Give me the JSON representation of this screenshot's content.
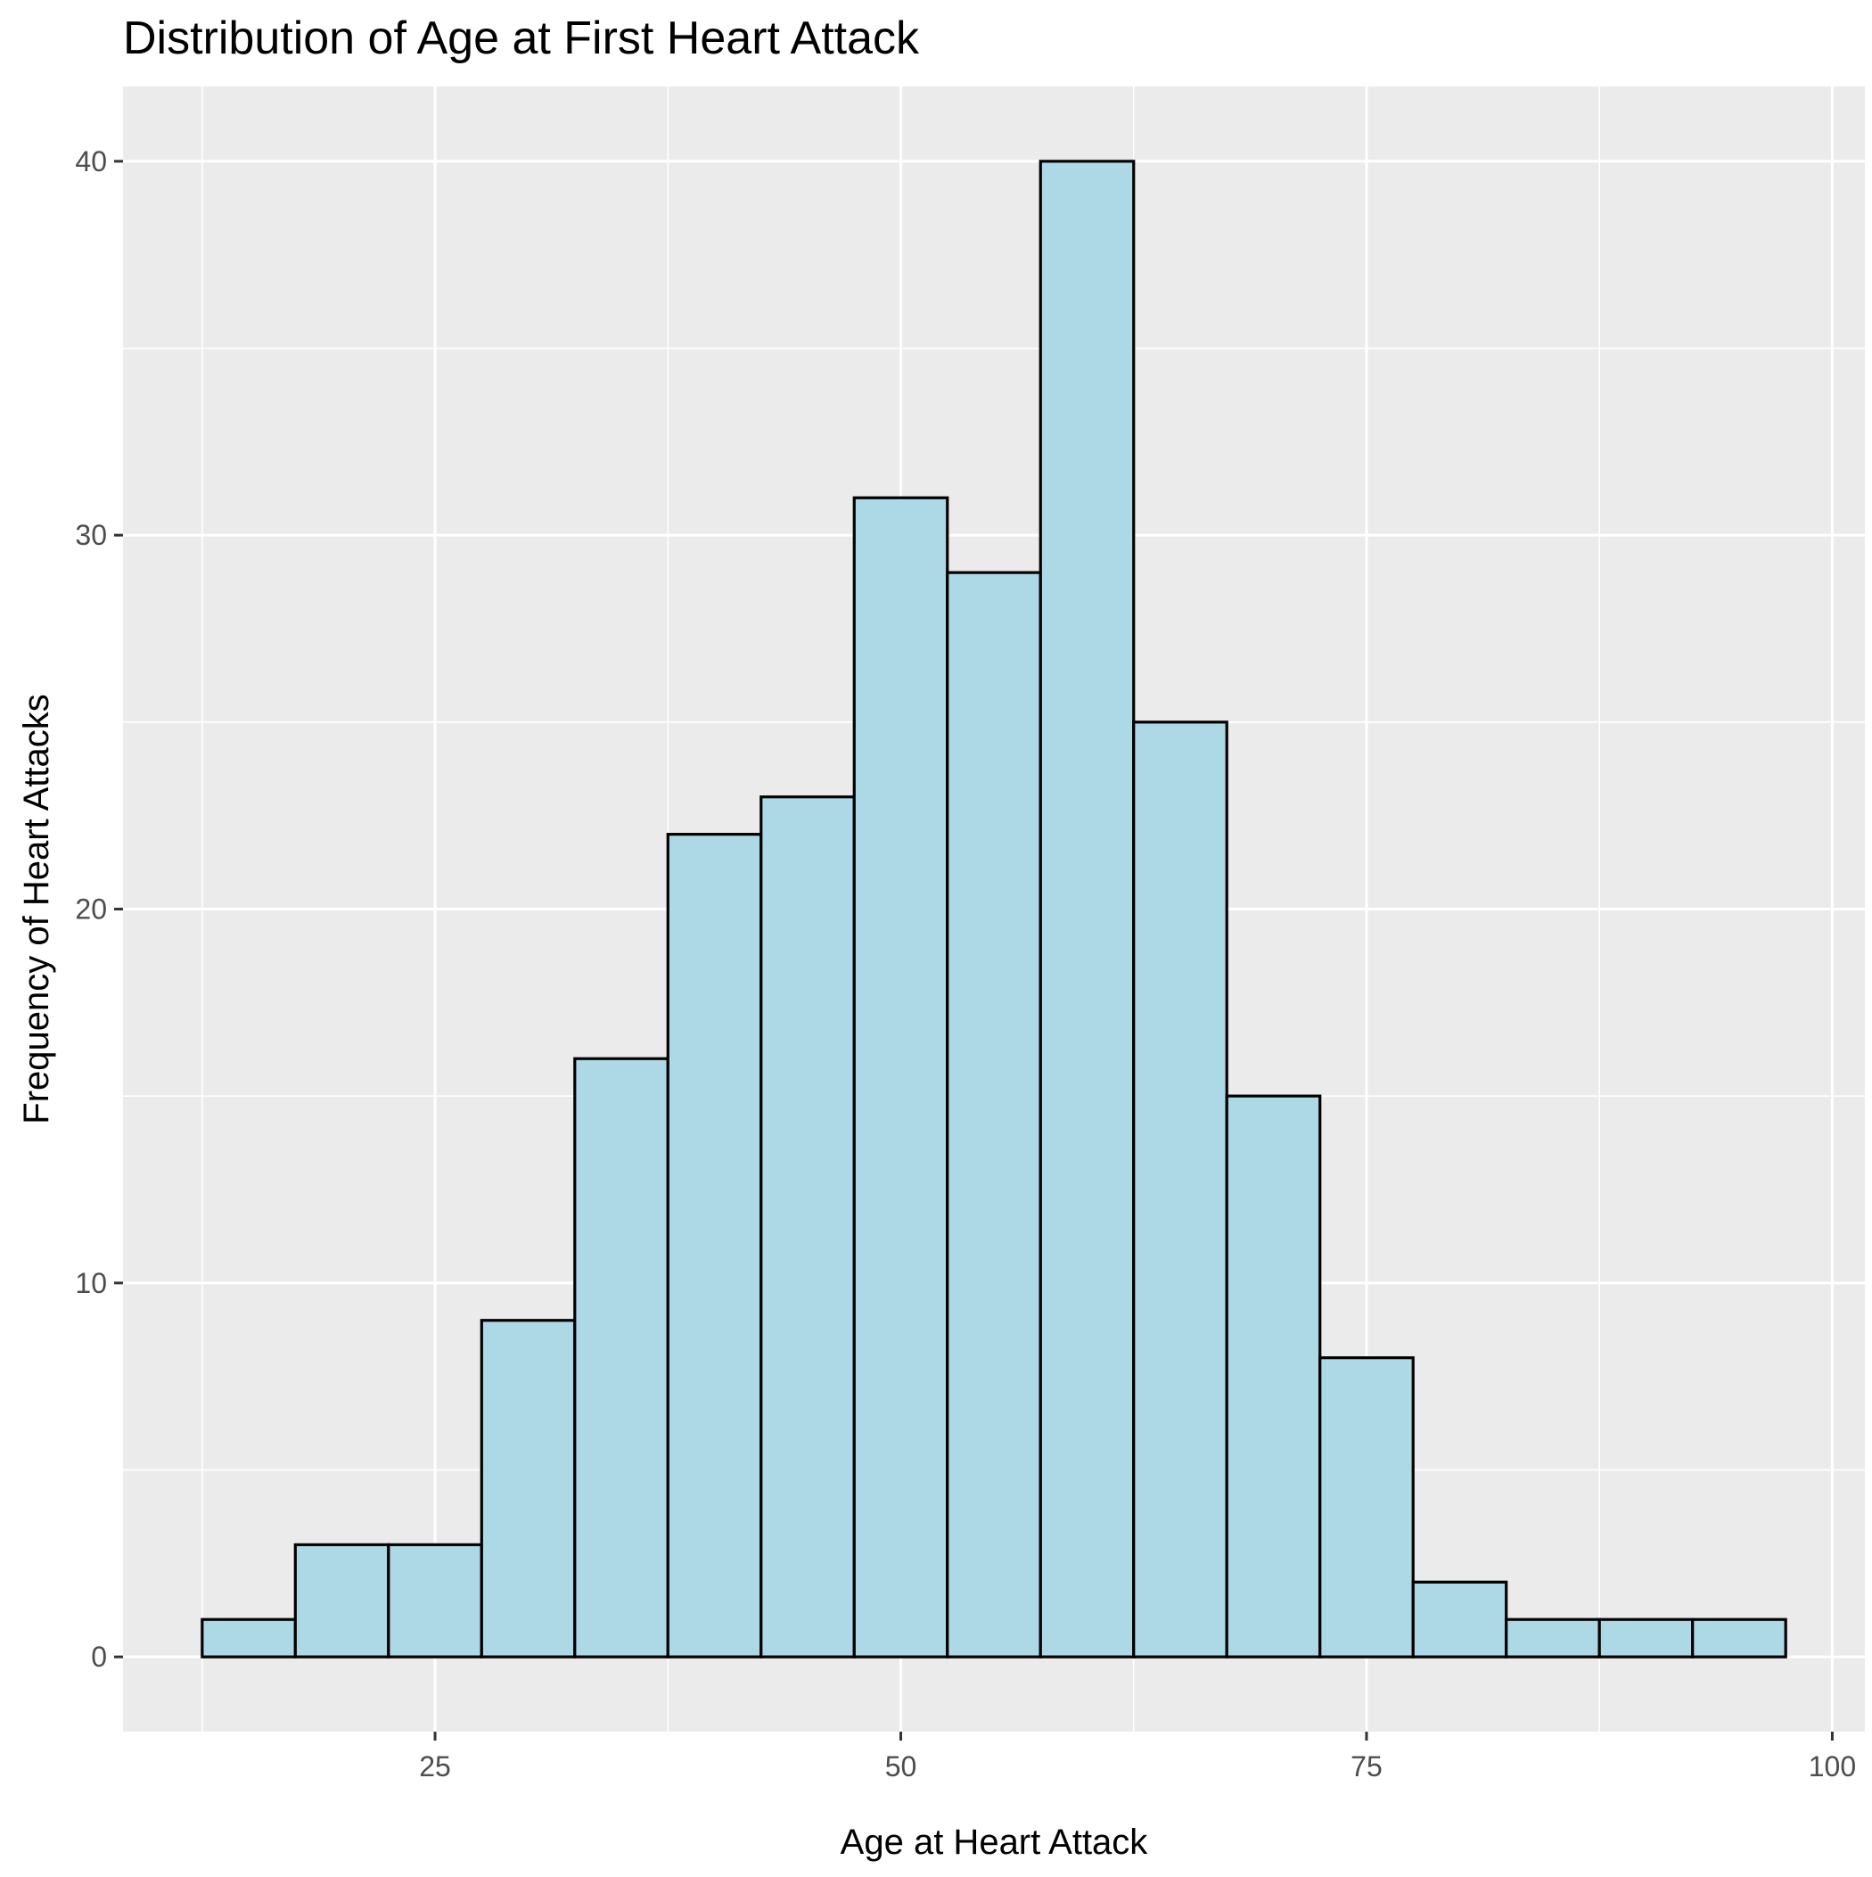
{
  "chart_data": {
    "type": "bar",
    "title": "Distribution of Age at First Heart Attack",
    "xlabel": "Age at Heart Attack",
    "ylabel": "Frequency of Heart Attacks",
    "bin_width": 5,
    "bins": [
      {
        "start": 12.5,
        "end": 17.5,
        "count": 1
      },
      {
        "start": 17.5,
        "end": 22.5,
        "count": 3
      },
      {
        "start": 22.5,
        "end": 27.5,
        "count": 3
      },
      {
        "start": 27.5,
        "end": 32.5,
        "count": 9
      },
      {
        "start": 32.5,
        "end": 37.5,
        "count": 16
      },
      {
        "start": 37.5,
        "end": 42.5,
        "count": 22
      },
      {
        "start": 42.5,
        "end": 47.5,
        "count": 23
      },
      {
        "start": 47.5,
        "end": 52.5,
        "count": 31
      },
      {
        "start": 52.5,
        "end": 57.5,
        "count": 29
      },
      {
        "start": 57.5,
        "end": 62.5,
        "count": 40
      },
      {
        "start": 62.5,
        "end": 67.5,
        "count": 25
      },
      {
        "start": 67.5,
        "end": 72.5,
        "count": 15
      },
      {
        "start": 72.5,
        "end": 77.5,
        "count": 8
      },
      {
        "start": 77.5,
        "end": 82.5,
        "count": 2
      },
      {
        "start": 82.5,
        "end": 87.5,
        "count": 1
      },
      {
        "start": 87.5,
        "end": 92.5,
        "count": 1
      },
      {
        "start": 92.5,
        "end": 97.5,
        "count": 1
      }
    ],
    "xlim": [
      8.25,
      101.75
    ],
    "ylim": [
      -2,
      42
    ],
    "x_ticks": [
      25,
      50,
      75,
      100
    ],
    "y_ticks": [
      0,
      10,
      20,
      30,
      40
    ],
    "x_tick_labels": [
      "25",
      "50",
      "75",
      "100"
    ],
    "y_tick_labels": [
      "0",
      "10",
      "20",
      "30",
      "40"
    ],
    "x_minor_gridlines": [
      12.5,
      37.5,
      62.5,
      87.5
    ],
    "y_minor_gridlines": [
      5,
      15,
      25,
      35
    ],
    "grid": true,
    "legend": "none",
    "colors": {
      "panel_background": "#EBEBEB",
      "gridline": "#FFFFFF",
      "bar_fill": "#ADD8E6",
      "bar_outline": "#000000",
      "tick_text": "#4D4D4D",
      "tick_mark": "#333333"
    }
  }
}
